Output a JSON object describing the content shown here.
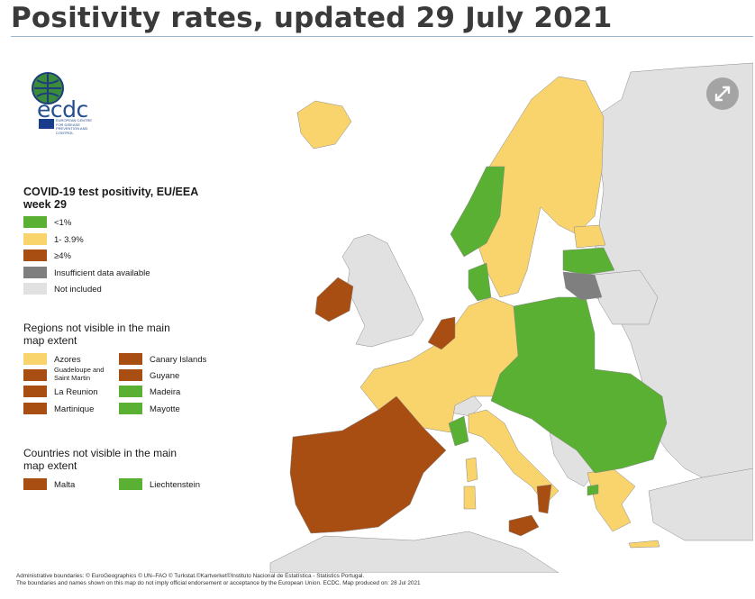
{
  "title": "Positivity rates, updated 29 July 2021",
  "logo": {
    "wordmark": "ecdc",
    "subtitle": "EUROPEAN CENTRE FOR DISEASE PREVENTION AND CONTROL",
    "icon": "globe-icon"
  },
  "expand_button": {
    "icon": "expand-arrows-icon"
  },
  "colors": {
    "sea": "#ffffff",
    "not_included": "#e1e1e1",
    "green": "#59b033",
    "yellow": "#f9d36c",
    "brown": "#a84e12",
    "grey": "#7f7f7f",
    "border": "#8a8a8a"
  },
  "legend": {
    "title": "COVID-19 test positivity, EU/EEA week 29",
    "items": [
      {
        "label": "<1%",
        "color": "#59b033"
      },
      {
        "label": "1- 3.9%",
        "color": "#f9d36c"
      },
      {
        "label": "≥4%",
        "color": "#a84e12"
      },
      {
        "label": "Insufficient data available",
        "color": "#7f7f7f"
      },
      {
        "label": "Not included",
        "color": "#e1e1e1"
      }
    ]
  },
  "regions_section": {
    "title": "Regions not visible in the main map extent",
    "items": [
      {
        "label": "Azores",
        "color": "#f9d36c"
      },
      {
        "label": "Guadeloupe and Saint Martin",
        "color": "#a84e12"
      },
      {
        "label": "La Reunion",
        "color": "#a84e12"
      },
      {
        "label": "Martinique",
        "color": "#a84e12"
      },
      {
        "label": "Canary Islands",
        "color": "#a84e12"
      },
      {
        "label": "Guyane",
        "color": "#a84e12"
      },
      {
        "label": "Madeira",
        "color": "#59b033"
      },
      {
        "label": "Mayotte",
        "color": "#59b033"
      }
    ]
  },
  "countries_section": {
    "title": "Countries not visible in the main map extent",
    "items": [
      {
        "label": "Malta",
        "color": "#a84e12"
      },
      {
        "label": "Liechtenstein",
        "color": "#59b033"
      }
    ]
  },
  "footnote": {
    "line1": "Administrative boundaries: © EuroGeographics © UN–FAO © Turkstat.©Kartverket©Instituto Nacional de Estatística - Statistics Portugal.",
    "line2": "The boundaries and names shown on this map do not imply official endorsement or acceptance by the European Union. ECDC. Map produced on: 28 Jul 2021"
  }
}
